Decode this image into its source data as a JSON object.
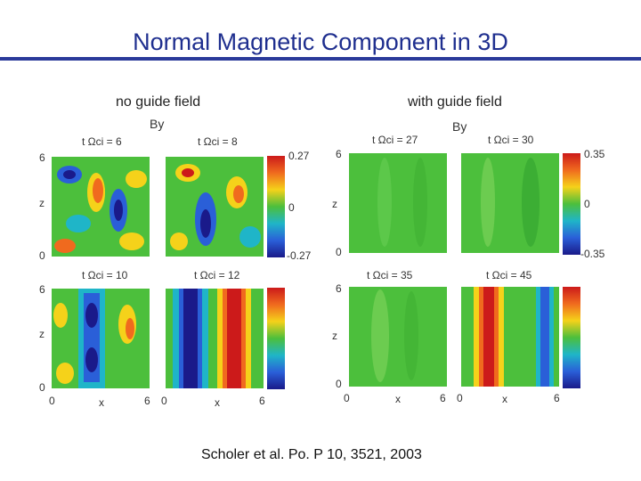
{
  "slide": {
    "title": "Normal Magnetic Component in 3D",
    "citation": "Scholer et al. Po. P 10, 3521, 2003"
  },
  "left": {
    "heading": "no guide field",
    "field_label": "By",
    "panel_labels": [
      "t Ωci = 6",
      "t Ωci = 8",
      "t Ωci = 10",
      "t Ωci = 12"
    ],
    "colorbar_ticks": [
      "0.27",
      "0",
      "-0.27"
    ],
    "z_ticks": [
      "6",
      "0"
    ],
    "z_label": "z",
    "x_ticks": [
      "0",
      "6"
    ],
    "x_label": "x"
  },
  "right": {
    "heading": "with guide field",
    "field_label": "By",
    "panel_labels": [
      "t Ωci = 27",
      "t Ωci = 30",
      "t Ωci = 35",
      "t Ωci = 45"
    ],
    "colorbar_ticks": [
      "0.35",
      "0",
      "-0.35"
    ],
    "z_ticks": [
      "6",
      "0"
    ],
    "z_label": "z",
    "x_ticks": [
      "0",
      "6"
    ],
    "x_label": "x"
  },
  "colors": {
    "title": "#1f2f8f",
    "colormap": [
      "#cc1a1a",
      "#f06a1e",
      "#f5d21a",
      "#4cbf3c",
      "#1fb5c8",
      "#2a5fd8",
      "#1a1a8a"
    ]
  }
}
